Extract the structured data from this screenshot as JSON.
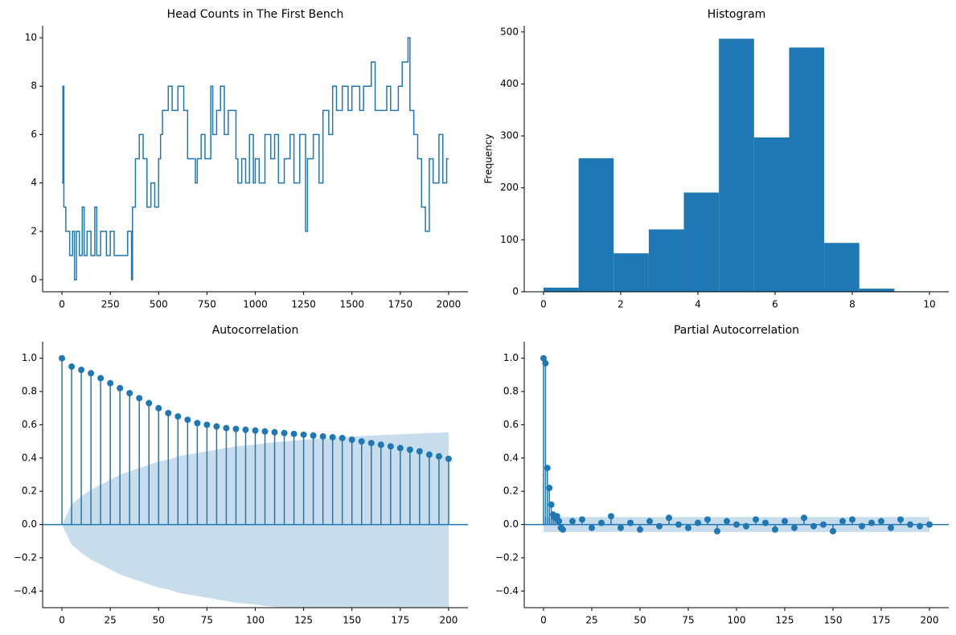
{
  "chart_data": [
    {
      "type": "line",
      "title": "Head Counts in The First Bench",
      "color": "#1f77b4",
      "step": true,
      "x": [
        0,
        5,
        10,
        20,
        40,
        55,
        65,
        75,
        90,
        105,
        115,
        130,
        150,
        170,
        180,
        200,
        230,
        250,
        270,
        300,
        340,
        360,
        365,
        380,
        400,
        420,
        440,
        460,
        480,
        500,
        510,
        520,
        550,
        570,
        600,
        630,
        650,
        680,
        690,
        700,
        720,
        740,
        770,
        780,
        800,
        820,
        840,
        860,
        880,
        900,
        910,
        930,
        950,
        970,
        990,
        1000,
        1020,
        1050,
        1080,
        1100,
        1120,
        1150,
        1180,
        1200,
        1230,
        1260,
        1270,
        1300,
        1330,
        1350,
        1380,
        1400,
        1420,
        1450,
        1480,
        1500,
        1540,
        1560,
        1600,
        1620,
        1680,
        1700,
        1740,
        1760,
        1790,
        1800,
        1820,
        1840,
        1860,
        1880,
        1900,
        1920,
        1950,
        1970,
        1990,
        2000
      ],
      "values": [
        4,
        8,
        3,
        2,
        1,
        2,
        0,
        2,
        1,
        3,
        1,
        2,
        1,
        3,
        1,
        2,
        1,
        2,
        1,
        1,
        2,
        0,
        3,
        5,
        6,
        5,
        3,
        4,
        3,
        5,
        6,
        7,
        8,
        7,
        8,
        7,
        5,
        5,
        4,
        5,
        6,
        5,
        8,
        6,
        7,
        8,
        6,
        7,
        7,
        5,
        4,
        5,
        4,
        6,
        4,
        5,
        4,
        6,
        5,
        6,
        4,
        5,
        6,
        4,
        6,
        2,
        5,
        6,
        4,
        7,
        6,
        8,
        7,
        8,
        7,
        8,
        7,
        8,
        9,
        7,
        8,
        7,
        8,
        9,
        10,
        7,
        6,
        5,
        3,
        2,
        5,
        4,
        6,
        4,
        5,
        5
      ],
      "xlim": [
        -100,
        2100
      ],
      "xticks": [
        0,
        250,
        500,
        750,
        1000,
        1250,
        1500,
        1750,
        2000
      ],
      "ylim": [
        -0.5,
        10.5
      ],
      "yticks": [
        0,
        2,
        4,
        6,
        8,
        10
      ]
    },
    {
      "type": "histogram",
      "title": "Histogram",
      "ylabel": "Frequency",
      "color": "#1f77b4",
      "bins": [
        0,
        0.909,
        1.818,
        2.727,
        3.636,
        4.545,
        5.455,
        6.364,
        7.273,
        8.182,
        9.091,
        10
      ],
      "values": [
        8,
        257,
        74,
        120,
        191,
        487,
        297,
        470,
        94,
        6,
        1
      ],
      "xlim": [
        -0.5,
        10.5
      ],
      "xticks": [
        0,
        2,
        4,
        6,
        8,
        10
      ],
      "ylim": [
        0,
        512
      ],
      "yticks": [
        0,
        100,
        200,
        300,
        400,
        500
      ]
    },
    {
      "type": "stem",
      "title": "Autocorrelation",
      "color": "#1f77b4",
      "x": [
        0,
        5,
        10,
        15,
        20,
        25,
        30,
        35,
        40,
        45,
        50,
        55,
        60,
        65,
        70,
        75,
        80,
        85,
        90,
        95,
        100,
        105,
        110,
        115,
        120,
        125,
        130,
        135,
        140,
        145,
        150,
        155,
        160,
        165,
        170,
        175,
        180,
        185,
        190,
        195,
        200
      ],
      "values": [
        1.0,
        0.95,
        0.93,
        0.91,
        0.88,
        0.85,
        0.82,
        0.79,
        0.76,
        0.73,
        0.7,
        0.67,
        0.65,
        0.63,
        0.61,
        0.6,
        0.59,
        0.58,
        0.575,
        0.57,
        0.565,
        0.56,
        0.555,
        0.55,
        0.545,
        0.54,
        0.535,
        0.53,
        0.525,
        0.52,
        0.51,
        0.5,
        0.49,
        0.48,
        0.47,
        0.46,
        0.45,
        0.44,
        0.42,
        0.41,
        0.395
      ],
      "conf_upper": [
        0,
        0.12,
        0.17,
        0.21,
        0.24,
        0.27,
        0.3,
        0.32,
        0.34,
        0.36,
        0.38,
        0.39,
        0.41,
        0.42,
        0.43,
        0.44,
        0.45,
        0.46,
        0.47,
        0.475,
        0.48,
        0.49,
        0.495,
        0.5,
        0.505,
        0.51,
        0.515,
        0.52,
        0.522,
        0.525,
        0.53,
        0.532,
        0.535,
        0.538,
        0.54,
        0.542,
        0.545,
        0.547,
        0.55,
        0.552,
        0.555
      ],
      "conf_lower": [
        0,
        -0.12,
        -0.17,
        -0.21,
        -0.24,
        -0.27,
        -0.3,
        -0.32,
        -0.34,
        -0.36,
        -0.38,
        -0.39,
        -0.41,
        -0.42,
        -0.43,
        -0.44,
        -0.45,
        -0.46,
        -0.47,
        -0.475,
        -0.48,
        -0.49,
        -0.495,
        -0.5,
        -0.505,
        -0.51,
        -0.515,
        -0.52,
        -0.522,
        -0.525,
        -0.53,
        -0.532,
        -0.535,
        -0.538,
        -0.54,
        -0.542,
        -0.545,
        -0.547,
        -0.55,
        -0.552,
        -0.555
      ],
      "xlim": [
        -10,
        210
      ],
      "xticks": [
        0,
        25,
        50,
        75,
        100,
        125,
        150,
        175,
        200
      ],
      "ylim": [
        -0.5,
        1.1
      ],
      "yticks": [
        {
          "value": -0.4,
          "label": "−0.4"
        },
        {
          "value": -0.2,
          "label": "−0.2"
        },
        {
          "value": 0,
          "label": "0.0"
        },
        {
          "value": 0.2,
          "label": "0.2"
        },
        {
          "value": 0.4,
          "label": "0.4"
        },
        {
          "value": 0.6,
          "label": "0.6"
        },
        {
          "value": 0.8,
          "label": "0.8"
        },
        {
          "value": 1,
          "label": "1.0"
        }
      ]
    },
    {
      "type": "stem",
      "title": "Partial Autocorrelation",
      "color": "#1f77b4",
      "x": [
        0,
        1,
        2,
        3,
        4,
        5,
        6,
        7,
        8,
        9,
        10,
        15,
        20,
        25,
        30,
        35,
        40,
        45,
        50,
        55,
        60,
        65,
        70,
        75,
        80,
        85,
        90,
        95,
        100,
        105,
        110,
        115,
        120,
        125,
        130,
        135,
        140,
        145,
        150,
        155,
        160,
        165,
        170,
        175,
        180,
        185,
        190,
        195,
        200
      ],
      "values": [
        1.0,
        0.97,
        0.34,
        0.22,
        0.12,
        0.06,
        0.04,
        0.05,
        0.02,
        -0.02,
        -0.03,
        0.02,
        0.03,
        -0.02,
        0.01,
        0.05,
        -0.02,
        0.01,
        -0.03,
        0.02,
        -0.01,
        0.04,
        0.0,
        -0.02,
        0.01,
        0.03,
        -0.04,
        0.02,
        0.0,
        -0.01,
        0.03,
        0.01,
        -0.03,
        0.02,
        -0.02,
        0.04,
        -0.01,
        0.0,
        -0.04,
        0.02,
        0.03,
        -0.01,
        0.01,
        0.02,
        -0.02,
        0.03,
        0.0,
        -0.01,
        0.0
      ],
      "conf_upper": 0.045,
      "conf_lower": -0.045,
      "xlim": [
        -10,
        210
      ],
      "xticks": [
        0,
        25,
        50,
        75,
        100,
        125,
        150,
        175,
        200
      ],
      "ylim": [
        -0.5,
        1.1
      ],
      "yticks": [
        {
          "value": -0.4,
          "label": "−0.4"
        },
        {
          "value": -0.2,
          "label": "−0.2"
        },
        {
          "value": 0,
          "label": "0.0"
        },
        {
          "value": 0.2,
          "label": "0.2"
        },
        {
          "value": 0.4,
          "label": "0.4"
        },
        {
          "value": 0.6,
          "label": "0.6"
        },
        {
          "value": 0.8,
          "label": "0.8"
        },
        {
          "value": 1,
          "label": "1.0"
        }
      ]
    }
  ]
}
